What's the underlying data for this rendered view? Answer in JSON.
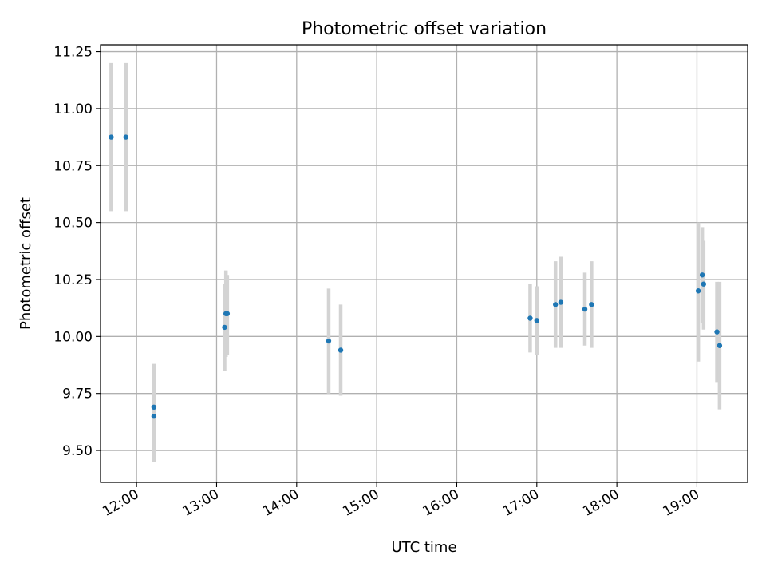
{
  "chart_data": {
    "type": "scatter",
    "title": "Photometric offset variation",
    "xlabel": "UTC time",
    "ylabel": "Photometric offset",
    "x_axis_type": "time",
    "xlim": [
      "11:33",
      "19:38"
    ],
    "ylim": [
      9.36,
      11.28
    ],
    "grid": true,
    "x_ticks": [
      "12:00",
      "13:00",
      "14:00",
      "15:00",
      "16:00",
      "17:00",
      "18:00",
      "19:00"
    ],
    "y_ticks": [
      "9.50",
      "9.75",
      "10.00",
      "10.25",
      "10.50",
      "10.75",
      "11.00",
      "11.25"
    ],
    "colors": {
      "point": "#1f77b4",
      "error_bar": "#d3d3d3",
      "grid": "#b0b0b0"
    },
    "points": [
      {
        "t": "11:41",
        "y": 10.875,
        "yerr_low": 10.55,
        "yerr_high": 11.2
      },
      {
        "t": "11:52",
        "y": 10.875,
        "yerr_low": 10.55,
        "yerr_high": 11.2
      },
      {
        "t": "12:13",
        "y": 9.65,
        "yerr_low": 9.45,
        "yerr_high": 9.85
      },
      {
        "t": "12:13",
        "y": 9.69,
        "yerr_low": 9.5,
        "yerr_high": 9.88
      },
      {
        "t": "13:06",
        "y": 10.04,
        "yerr_low": 9.85,
        "yerr_high": 10.23
      },
      {
        "t": "13:07",
        "y": 10.1,
        "yerr_low": 9.91,
        "yerr_high": 10.29
      },
      {
        "t": "13:08",
        "y": 10.1,
        "yerr_low": 9.92,
        "yerr_high": 10.27
      },
      {
        "t": "14:24",
        "y": 9.98,
        "yerr_low": 9.75,
        "yerr_high": 10.21
      },
      {
        "t": "14:33",
        "y": 9.94,
        "yerr_low": 9.74,
        "yerr_high": 10.14
      },
      {
        "t": "16:55",
        "y": 10.08,
        "yerr_low": 9.93,
        "yerr_high": 10.23
      },
      {
        "t": "17:00",
        "y": 10.07,
        "yerr_low": 9.92,
        "yerr_high": 10.22
      },
      {
        "t": "17:14",
        "y": 10.14,
        "yerr_low": 9.95,
        "yerr_high": 10.33
      },
      {
        "t": "17:18",
        "y": 10.15,
        "yerr_low": 9.95,
        "yerr_high": 10.35
      },
      {
        "t": "17:36",
        "y": 10.12,
        "yerr_low": 9.96,
        "yerr_high": 10.28
      },
      {
        "t": "17:41",
        "y": 10.14,
        "yerr_low": 9.95,
        "yerr_high": 10.33
      },
      {
        "t": "19:01",
        "y": 10.2,
        "yerr_low": 9.89,
        "yerr_high": 10.5
      },
      {
        "t": "19:04",
        "y": 10.27,
        "yerr_low": 10.06,
        "yerr_high": 10.48
      },
      {
        "t": "19:05",
        "y": 10.23,
        "yerr_low": 10.03,
        "yerr_high": 10.42
      },
      {
        "t": "19:15",
        "y": 10.02,
        "yerr_low": 9.8,
        "yerr_high": 10.24
      },
      {
        "t": "19:17",
        "y": 9.96,
        "yerr_low": 9.68,
        "yerr_high": 10.24
      }
    ]
  }
}
